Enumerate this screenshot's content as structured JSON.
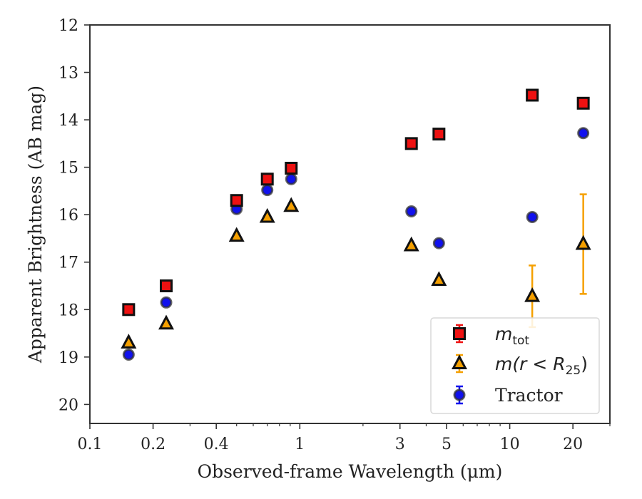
{
  "chart_data": {
    "type": "scatter",
    "xlabel": "Observed-frame Wavelength (μm)",
    "ylabel": "Apparent Brightness (AB mag)",
    "x_scale": "log",
    "xlim": [
      0.1,
      30
    ],
    "ylim": [
      20.4,
      12
    ],
    "y_inverted": true,
    "grid": false,
    "legend_position": "bottom-right",
    "x_ticks": [
      {
        "value": 0.1,
        "label": "0.1"
      },
      {
        "value": 0.2,
        "label": "0.2"
      },
      {
        "value": 0.4,
        "label": "0.4"
      },
      {
        "value": 1,
        "label": "1"
      },
      {
        "value": 3,
        "label": "3"
      },
      {
        "value": 5,
        "label": "5"
      },
      {
        "value": 10,
        "label": "10"
      },
      {
        "value": 20,
        "label": "20"
      }
    ],
    "y_ticks": [
      {
        "value": 12,
        "label": "12"
      },
      {
        "value": 13,
        "label": "13"
      },
      {
        "value": 14,
        "label": "14"
      },
      {
        "value": 15,
        "label": "15"
      },
      {
        "value": 16,
        "label": "16"
      },
      {
        "value": 17,
        "label": "17"
      },
      {
        "value": 18,
        "label": "18"
      },
      {
        "value": 19,
        "label": "19"
      },
      {
        "value": 20,
        "label": "20"
      }
    ],
    "series": [
      {
        "name": "m_tot",
        "marker": "square",
        "color": "#ee1111",
        "edge_color": "#111111",
        "points": [
          {
            "x": 0.153,
            "y": 18.0,
            "err": 0.05
          },
          {
            "x": 0.231,
            "y": 17.5,
            "err": 0.05
          },
          {
            "x": 0.5,
            "y": 15.7,
            "err": 0.05
          },
          {
            "x": 0.7,
            "y": 15.25,
            "err": 0.05
          },
          {
            "x": 0.91,
            "y": 15.02,
            "err": 0.05
          },
          {
            "x": 3.4,
            "y": 14.5,
            "err": 0.05
          },
          {
            "x": 4.6,
            "y": 14.3,
            "err": 0.05
          },
          {
            "x": 12.8,
            "y": 13.48,
            "err": 0.05
          },
          {
            "x": 22.4,
            "y": 13.65,
            "err": 0.05
          }
        ]
      },
      {
        "name": "m(r < R_25)",
        "marker": "triangle",
        "color": "#f5a000",
        "edge_color": "#111111",
        "points": [
          {
            "x": 0.153,
            "y": 18.7,
            "err": 0.05
          },
          {
            "x": 0.231,
            "y": 18.3,
            "err": 0.05
          },
          {
            "x": 0.5,
            "y": 16.45,
            "err": 0.05
          },
          {
            "x": 0.7,
            "y": 16.05,
            "err": 0.05
          },
          {
            "x": 0.91,
            "y": 15.82,
            "err": 0.05
          },
          {
            "x": 3.4,
            "y": 16.65,
            "err": 0.05
          },
          {
            "x": 4.6,
            "y": 17.38,
            "err": 0.05
          },
          {
            "x": 12.8,
            "y": 17.72,
            "err": 0.65
          },
          {
            "x": 22.4,
            "y": 16.62,
            "err": 1.05
          }
        ]
      },
      {
        "name": "Tractor",
        "marker": "circle",
        "color": "#1111ee",
        "edge_color": "#333333",
        "points": [
          {
            "x": 0.153,
            "y": 18.95,
            "err": 0.05
          },
          {
            "x": 0.231,
            "y": 17.85,
            "err": 0.05
          },
          {
            "x": 0.5,
            "y": 15.88,
            "err": 0.05
          },
          {
            "x": 0.7,
            "y": 15.48,
            "err": 0.05
          },
          {
            "x": 0.91,
            "y": 15.25,
            "err": 0.05
          },
          {
            "x": 3.4,
            "y": 15.93,
            "err": 0.05
          },
          {
            "x": 4.6,
            "y": 16.6,
            "err": 0.05
          },
          {
            "x": 12.8,
            "y": 16.05,
            "err": 0.05
          },
          {
            "x": 22.4,
            "y": 14.28,
            "err": 0.05
          }
        ]
      }
    ],
    "legend": [
      {
        "main": "m",
        "sub": "tot"
      },
      {
        "main": "m(r < R",
        "sub": "25",
        "tail": ")"
      },
      {
        "main": "Tractor"
      }
    ]
  }
}
